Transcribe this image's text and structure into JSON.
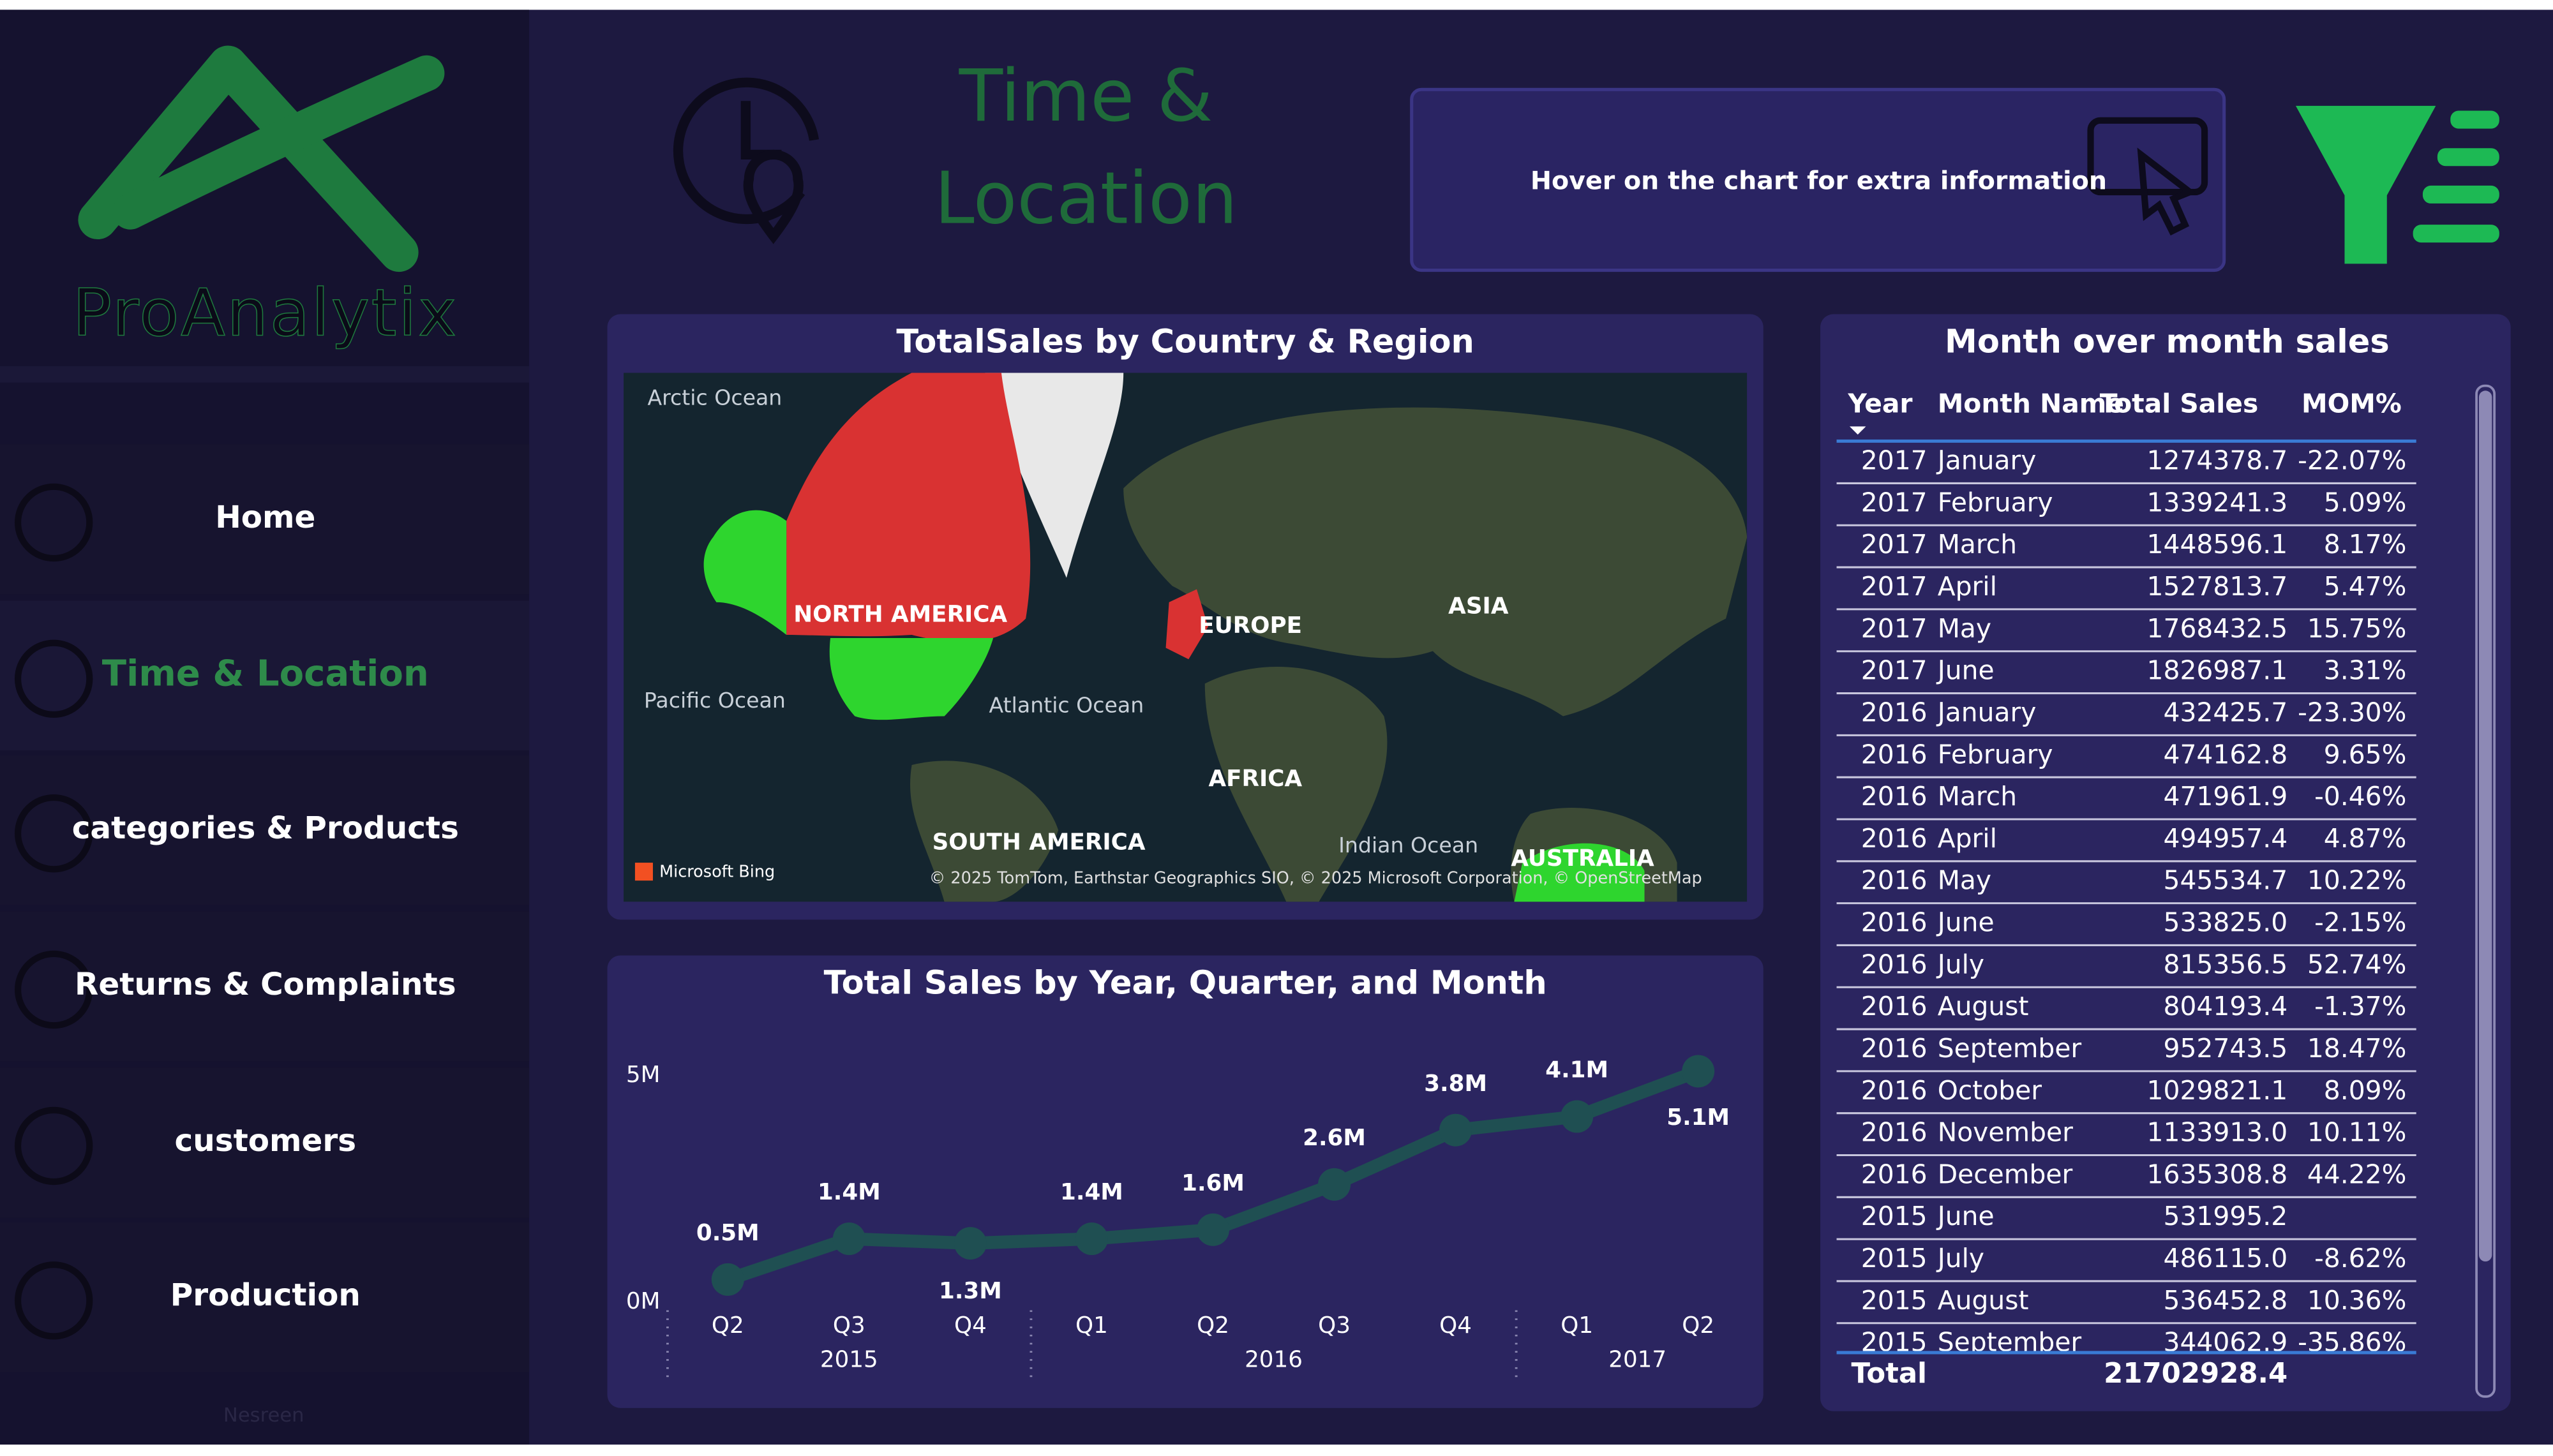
{
  "sidebar": {
    "logo_text": "ProAnalytix",
    "nav": [
      "Home",
      "Time & Location",
      "categories & Products",
      "Returns & Complaints",
      "customers",
      "Production"
    ],
    "footer": "Nesreen"
  },
  "header": {
    "title": [
      "Time &",
      "Location"
    ],
    "hint": "Hover on the chart for extra information"
  },
  "map": {
    "title": "TotalSales by Country & Region",
    "labels": [
      "Arctic Ocean",
      "NORTH AMERICA",
      "EUROPE",
      "ASIA",
      "Pacific Ocean",
      "Atlantic Ocean",
      "AFRICA",
      "SOUTH AMERICA",
      "Indian Ocean",
      "AUSTRALIA"
    ],
    "provider": "Microsoft Bing",
    "attribution": "© 2025 TomTom, Earthstar Geographics SIO, © 2025 Microsoft Corporation, © OpenStreetMap"
  },
  "chart_data": {
    "type": "line",
    "title": "Total Sales by Year, Quarter, and Month",
    "categories": [
      {
        "quarter": "Q2",
        "year": "2015"
      },
      {
        "quarter": "Q3",
        "year": "2015"
      },
      {
        "quarter": "Q4",
        "year": "2015"
      },
      {
        "quarter": "Q1",
        "year": "2016"
      },
      {
        "quarter": "Q2",
        "year": "2016"
      },
      {
        "quarter": "Q3",
        "year": "2016"
      },
      {
        "quarter": "Q4",
        "year": "2016"
      },
      {
        "quarter": "Q1",
        "year": "2017"
      },
      {
        "quarter": "Q2",
        "year": "2017"
      }
    ],
    "series": [
      {
        "name": "Total Sales",
        "color": "#1f4f52",
        "values": [
          500000,
          1400000,
          1300000,
          1400000,
          1600000,
          2600000,
          3800000,
          4100000,
          5100000
        ],
        "value_labels": [
          "0.5M",
          "1.4M",
          "1.3M",
          "1.4M",
          "1.6M",
          "2.6M",
          "3.8M",
          "4.1M",
          "5.1M"
        ]
      }
    ],
    "ylim": [
      0,
      5500000
    ],
    "yticks": [
      {
        "value": 0,
        "label": "0M"
      },
      {
        "value": 5000000,
        "label": "5M"
      }
    ]
  },
  "table": {
    "title": "Month over month sales",
    "columns": [
      "Year",
      "Month Name",
      "Total Sales",
      "MOM%"
    ],
    "rows": [
      [
        "2017",
        "January",
        "1274378.7",
        "-22.07%"
      ],
      [
        "2017",
        "February",
        "1339241.3",
        "5.09%"
      ],
      [
        "2017",
        "March",
        "1448596.1",
        "8.17%"
      ],
      [
        "2017",
        "April",
        "1527813.7",
        "5.47%"
      ],
      [
        "2017",
        "May",
        "1768432.5",
        "15.75%"
      ],
      [
        "2017",
        "June",
        "1826987.1",
        "3.31%"
      ],
      [
        "2016",
        "January",
        "432425.7",
        "-23.30%"
      ],
      [
        "2016",
        "February",
        "474162.8",
        "9.65%"
      ],
      [
        "2016",
        "March",
        "471961.9",
        "-0.46%"
      ],
      [
        "2016",
        "April",
        "494957.4",
        "4.87%"
      ],
      [
        "2016",
        "May",
        "545534.7",
        "10.22%"
      ],
      [
        "2016",
        "June",
        "533825.0",
        "-2.15%"
      ],
      [
        "2016",
        "July",
        "815356.5",
        "52.74%"
      ],
      [
        "2016",
        "August",
        "804193.4",
        "-1.37%"
      ],
      [
        "2016",
        "September",
        "952743.5",
        "18.47%"
      ],
      [
        "2016",
        "October",
        "1029821.1",
        "8.09%"
      ],
      [
        "2016",
        "November",
        "1133913.0",
        "10.11%"
      ],
      [
        "2016",
        "December",
        "1635308.8",
        "44.22%"
      ],
      [
        "2015",
        "June",
        "531995.2",
        null
      ],
      [
        "2015",
        "July",
        "486115.0",
        "-8.62%"
      ],
      [
        "2015",
        "August",
        "536452.8",
        "10.36%"
      ],
      [
        "2015",
        "September",
        "344062.9",
        "-35.86%"
      ]
    ],
    "total_label": "Total",
    "total": "21702928.4"
  }
}
